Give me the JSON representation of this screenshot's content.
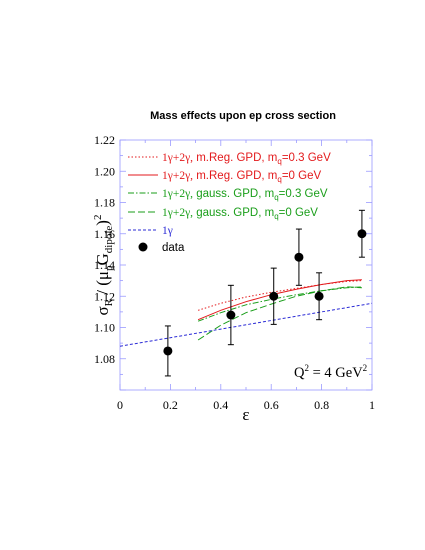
{
  "chart_data": {
    "type": "line",
    "title": "Mass effects upon ep cross section",
    "xlabel": "ε",
    "ylabel": {
      "sigma": "σ",
      "sigma_sub": "R",
      "mid": " / (μ",
      "mu_sub": "p",
      "G": "G",
      "g_sub": "dipole",
      "close": ")",
      "sup": "2"
    },
    "xlim": [
      0,
      1
    ],
    "ylim": [
      1.06,
      1.22
    ],
    "xticks": [
      "0",
      "0.2",
      "0.4",
      "0.6",
      "0.8",
      "1"
    ],
    "yticks": [
      "1.08",
      "1.10",
      "1.12",
      "1.14",
      "1.16",
      "1.18",
      "1.20",
      "1.22"
    ],
    "annotation": {
      "prefix": "Q",
      "sup1": "2",
      "mid": " = 4 GeV",
      "sup2": "2"
    },
    "series": [
      {
        "name_sym": "1γ+2γ,",
        "name_text": " m.Reg. GPD, m",
        "name_sub": "q",
        "name_tail": "=0.3 GeV",
        "color": "#e31a1c",
        "dash": "1.5,2",
        "x": [
          0.31,
          0.4,
          0.5,
          0.6,
          0.7,
          0.8,
          0.9,
          0.96
        ],
        "y": [
          1.111,
          1.1155,
          1.1195,
          1.1225,
          1.125,
          1.1275,
          1.1295,
          1.13
        ]
      },
      {
        "name_sym": "1γ+2γ,",
        "name_text": " m.Reg. GPD, m",
        "name_sub": "q",
        "name_tail": "=0 GeV",
        "color": "#e31a1c",
        "dash": "",
        "x": [
          0.31,
          0.4,
          0.5,
          0.6,
          0.7,
          0.8,
          0.9,
          0.96
        ],
        "y": [
          1.105,
          1.111,
          1.1165,
          1.121,
          1.1245,
          1.1275,
          1.13,
          1.1305
        ]
      },
      {
        "name_sym": "1γ+2γ,",
        "name_text": " gauss. GPD, m",
        "name_sub": "q",
        "name_tail": "=0.3 GeV",
        "color": "#1a9e1a",
        "dash": "6,2,1.5,2",
        "x": [
          0.31,
          0.4,
          0.5,
          0.6,
          0.7,
          0.8,
          0.9,
          0.96
        ],
        "y": [
          1.104,
          1.1095,
          1.1145,
          1.118,
          1.121,
          1.1235,
          1.1255,
          1.126
        ]
      },
      {
        "name_sym": "1γ+2γ,",
        "name_text": " gauss. GPD, m",
        "name_sub": "q",
        "name_tail": "=0 GeV",
        "color": "#1a9e1a",
        "dash": "7,3",
        "x": [
          0.31,
          0.4,
          0.5,
          0.6,
          0.7,
          0.8,
          0.9,
          0.96
        ],
        "y": [
          1.092,
          1.1015,
          1.1095,
          1.115,
          1.12,
          1.1235,
          1.126,
          1.1255
        ]
      },
      {
        "name_sym": "1γ",
        "name_text": "",
        "name_sub": "",
        "name_tail": "",
        "color": "#2b2bd6",
        "dash": "3,2",
        "x": [
          0,
          0.2,
          0.4,
          0.6,
          0.8,
          1.0
        ],
        "y": [
          1.088,
          1.0935,
          1.099,
          1.1045,
          1.11,
          1.1155
        ]
      }
    ],
    "data_points": {
      "name": "data",
      "x": [
        0.19,
        0.44,
        0.61,
        0.71,
        0.79,
        0.96
      ],
      "y": [
        1.085,
        1.108,
        1.12,
        1.145,
        1.12,
        1.16
      ],
      "yerr": [
        0.016,
        0.019,
        0.018,
        0.018,
        0.015,
        0.015
      ]
    }
  }
}
